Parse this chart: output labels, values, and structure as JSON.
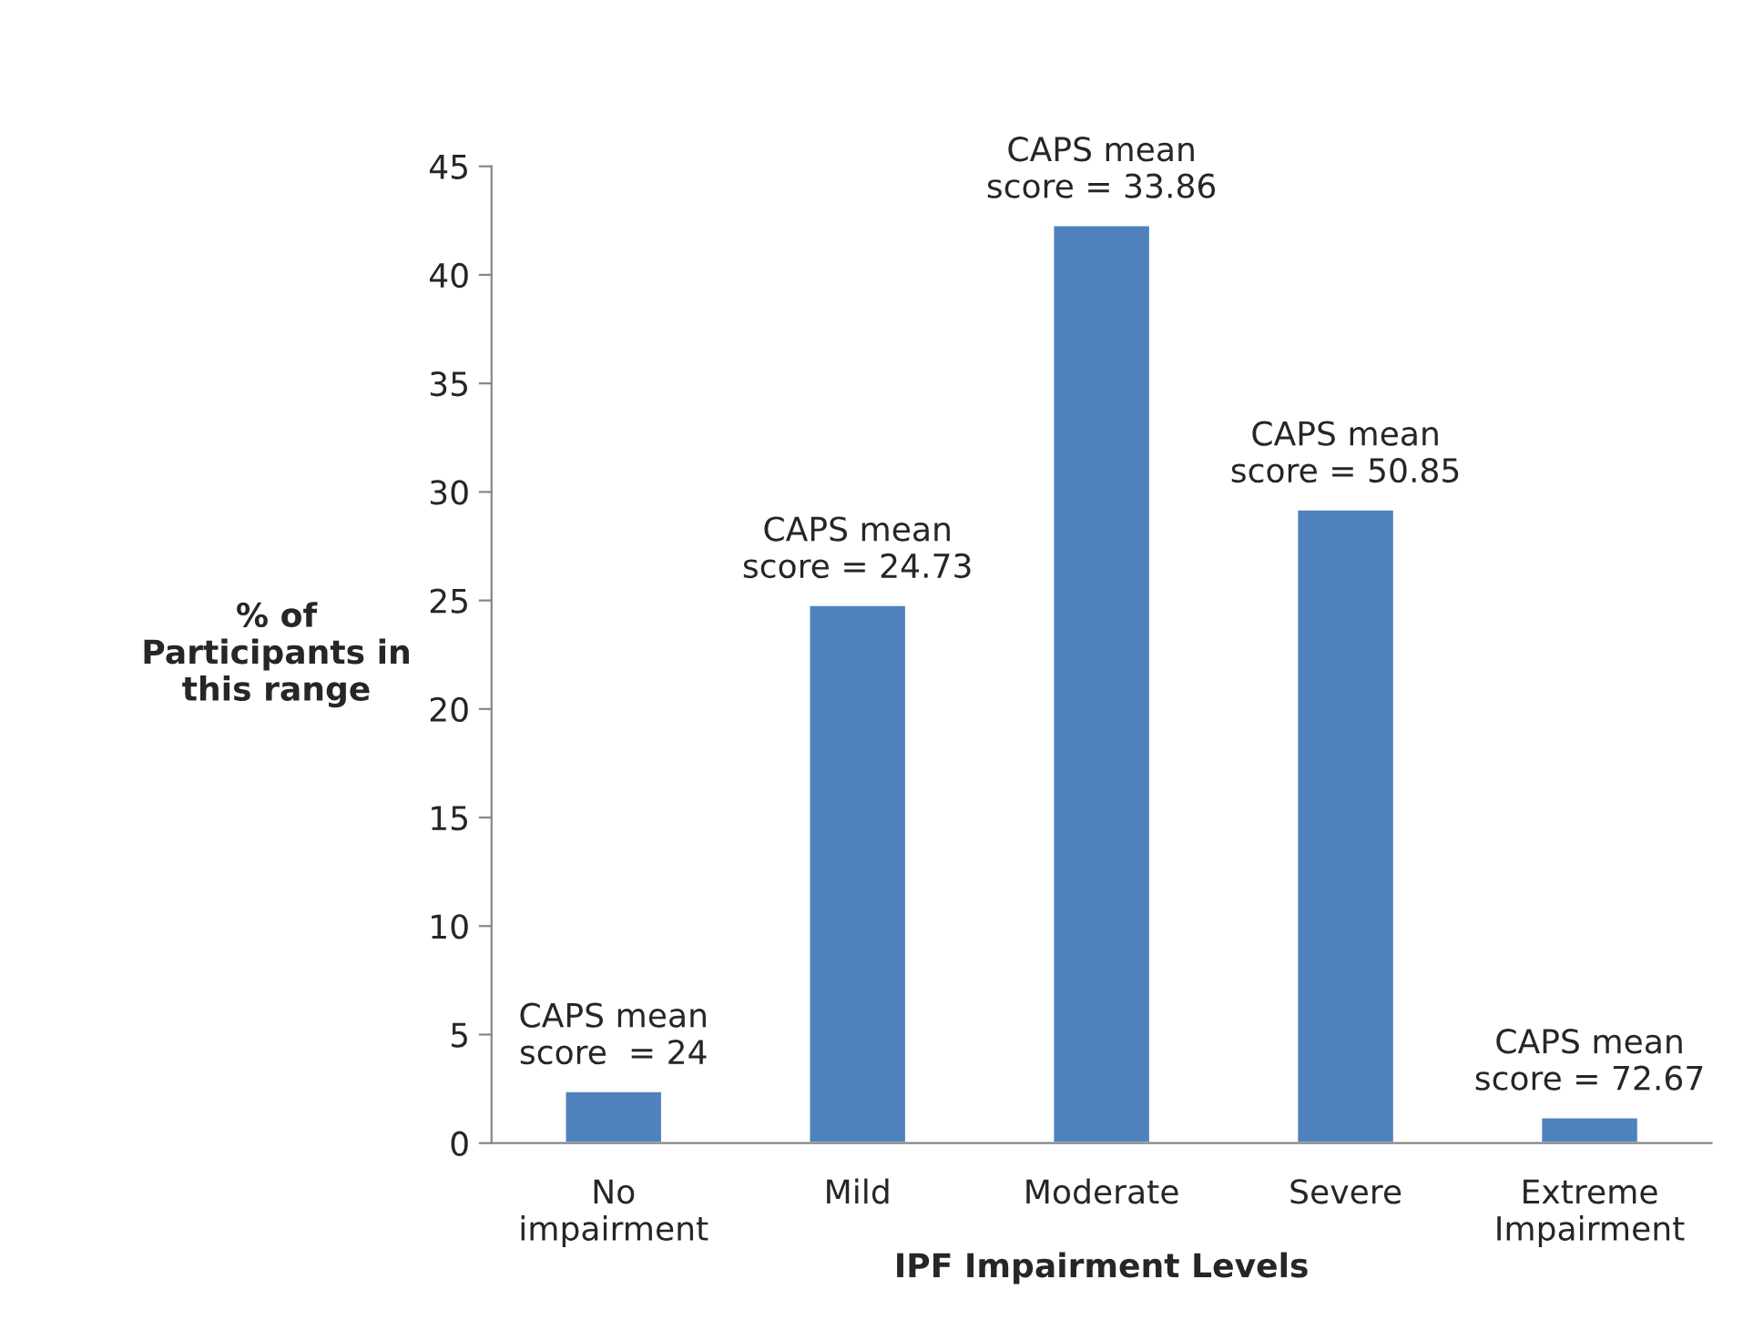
{
  "chart_data": {
    "type": "bar",
    "xlabel": "IPF Impairment Levels",
    "ylabel": "% of\nParticipants in\nthis range",
    "categories": [
      "No\nimpairment",
      "Mild",
      "Moderate",
      "Severe",
      "Extreme\nImpairment"
    ],
    "values": [
      2.4,
      24.8,
      42.3,
      29.2,
      1.2
    ],
    "color": "#4f81bd",
    "ylim": [
      0,
      45
    ],
    "yticks": [
      0,
      5,
      10,
      15,
      20,
      25,
      30,
      35,
      40,
      45
    ],
    "grid": false,
    "legend": false,
    "annotations": [
      "CAPS mean\nscore  = 24",
      "CAPS mean\nscore = 24.73",
      "CAPS mean\nscore = 33.86",
      "CAPS mean\nscore = 50.85",
      "CAPS mean\nscore = 72.67"
    ]
  }
}
